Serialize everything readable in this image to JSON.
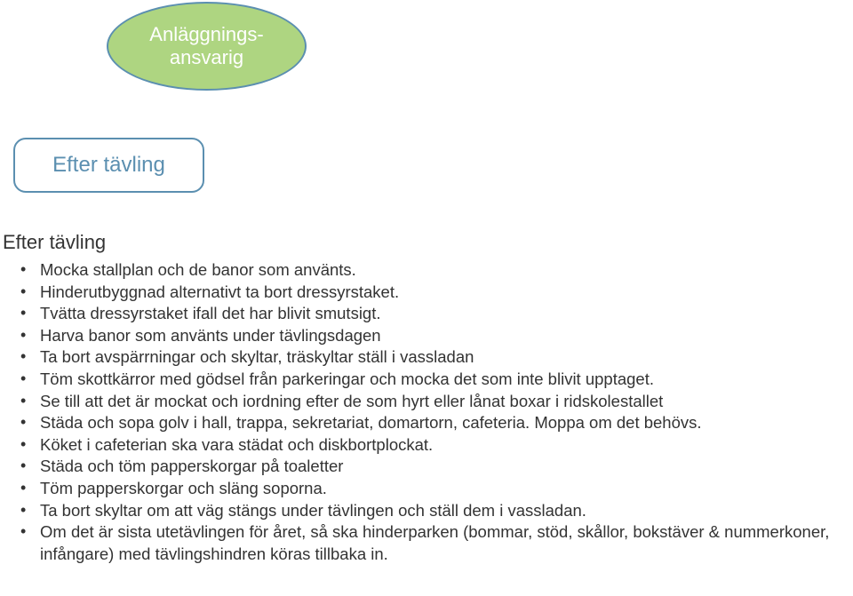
{
  "shapes": {
    "ellipse_text": "Anläggnings-\nansvarig",
    "roundedbox_text": "Efter tävling"
  },
  "section": {
    "heading": "Efter tävling",
    "bullets": [
      "Mocka stallplan och de banor som använts.",
      "Hinderutbyggnad alternativt ta bort dressyrstaket.",
      "Tvätta dressyrstaket ifall det har blivit smutsigt.",
      "Harva banor som använts under tävlingsdagen",
      "Ta bort avspärrningar och skyltar, träskyltar ställ i vassladan",
      "Töm skottkärror med gödsel från parkeringar och mocka det som inte blivit upptaget.",
      "Se till att det är mockat och iordning efter de som hyrt eller lånat boxar i ridskolestallet",
      "Städa och sopa golv i hall, trappa, sekretariat, domartorn, cafeteria. Moppa om det behövs.",
      "Köket i cafeterian ska vara städat och diskbortplockat.",
      "Städa och töm papperskorgar på toaletter",
      "Töm papperskorgar och släng soporna.",
      "Ta bort skyltar om att väg stängs under tävlingen och ställ dem i vassladan.",
      "Om det är sista utetävlingen för året, så ska hinderparken (bommar, stöd, skållor, bokstäver & nummerkoner, infångare) med tävlingshindren köras tillbaka in."
    ]
  },
  "styling": {
    "ellipse_bg": "#aed581",
    "ellipse_border": "#5b8fb0",
    "ellipse_text_color": "#ffffff",
    "roundedbox_border": "#5b8fb0",
    "roundedbox_text_color": "#5b8fb0",
    "body_text_color": "#333333",
    "page_bg": "#ffffff",
    "heading_fontsize": 22,
    "bullet_fontsize": 18.5,
    "ellipse_fontsize": 22,
    "roundedbox_fontsize": 24
  }
}
